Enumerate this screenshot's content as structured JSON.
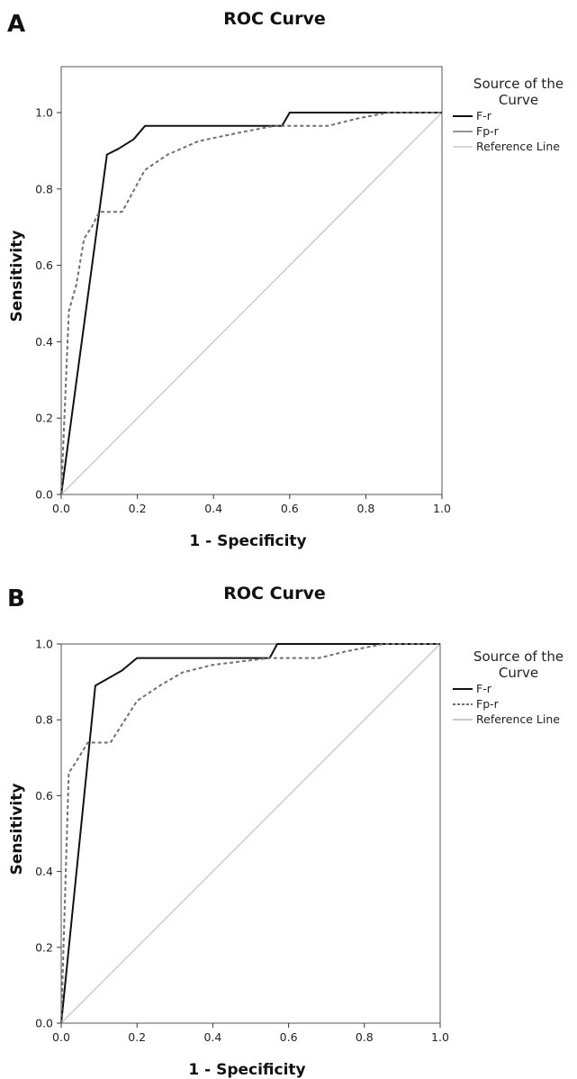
{
  "panels": [
    {
      "letter": "A",
      "legend": {
        "title": "Source of the Curve",
        "items": [
          "F-r",
          "Fp-r",
          "Reference Line"
        ]
      }
    },
    {
      "letter": "B",
      "legend": {
        "title": "Source of the Curve",
        "items": [
          "F-r",
          "Fp-r",
          "Reference Line"
        ]
      }
    }
  ],
  "colors": {
    "f_r": "#111111",
    "fp_r": "#707070",
    "reference": "#c8c8c8",
    "frame": "#555555"
  },
  "chart_data": [
    {
      "type": "line",
      "title": "ROC Curve",
      "xlabel": "1 - Specificity",
      "ylabel": "Sensitivity",
      "xlim": [
        0,
        1.0
      ],
      "ylim": [
        0,
        1.0
      ],
      "x_ticks": [
        "0.0",
        "0.2",
        "0.4",
        "0.6",
        "0.8",
        "1.0"
      ],
      "y_ticks": [
        "0.0",
        "0.2",
        "0.4",
        "0.6",
        "0.8",
        "1.0"
      ],
      "grid": false,
      "legend_position": "right",
      "series": [
        {
          "name": "F-r",
          "style": "solid",
          "x": [
            0,
            0.12,
            0.15,
            0.19,
            0.22,
            0.58,
            0.6,
            1.0
          ],
          "y": [
            0,
            0.89,
            0.905,
            0.93,
            0.965,
            0.965,
            1.0,
            1.0
          ]
        },
        {
          "name": "Fp-r",
          "style": "dashed",
          "x": [
            0,
            0.02,
            0.04,
            0.06,
            0.08,
            0.1,
            0.12,
            0.16,
            0.22,
            0.28,
            0.36,
            0.48,
            0.56,
            0.7,
            0.78,
            0.86,
            1.0
          ],
          "y": [
            0,
            0.48,
            0.55,
            0.67,
            0.7,
            0.74,
            0.74,
            0.74,
            0.85,
            0.89,
            0.925,
            0.95,
            0.965,
            0.965,
            0.985,
            1.0,
            1.0
          ]
        },
        {
          "name": "Reference Line",
          "style": "solid",
          "x": [
            0,
            1.0
          ],
          "y": [
            0,
            1.0
          ]
        }
      ]
    },
    {
      "type": "line",
      "title": "ROC Curve",
      "xlabel": "1 - Specificity",
      "ylabel": "Sensitivity",
      "xlim": [
        0,
        1.0
      ],
      "ylim": [
        0,
        1.0
      ],
      "x_ticks": [
        "0.0",
        "0.2",
        "0.4",
        "0.6",
        "0.8",
        "1.0"
      ],
      "y_ticks": [
        "0.0",
        "0.2",
        "0.4",
        "0.6",
        "0.8",
        "1.0"
      ],
      "grid": false,
      "legend_position": "right",
      "series": [
        {
          "name": "F-r",
          "style": "solid",
          "x": [
            0,
            0.09,
            0.16,
            0.2,
            0.55,
            0.57,
            1.0
          ],
          "y": [
            0,
            0.89,
            0.93,
            0.963,
            0.963,
            1.0,
            1.0
          ]
        },
        {
          "name": "Fp-r",
          "style": "dashed",
          "x": [
            0,
            0.02,
            0.04,
            0.07,
            0.08,
            0.13,
            0.2,
            0.26,
            0.32,
            0.4,
            0.55,
            0.68,
            0.75,
            0.85,
            1.0
          ],
          "y": [
            0,
            0.66,
            0.69,
            0.74,
            0.74,
            0.74,
            0.85,
            0.89,
            0.925,
            0.945,
            0.963,
            0.963,
            0.98,
            1.0,
            1.0
          ]
        },
        {
          "name": "Reference Line",
          "style": "solid",
          "x": [
            0,
            1.0
          ],
          "y": [
            0,
            1.0
          ]
        }
      ]
    }
  ]
}
